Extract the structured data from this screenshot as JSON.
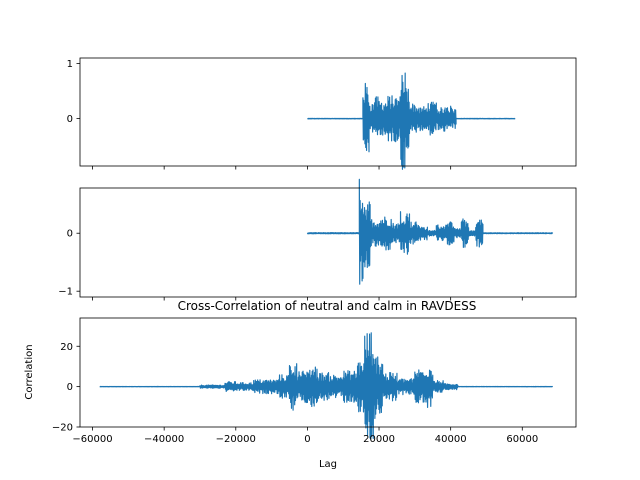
{
  "colors": {
    "line": "#1f77b4",
    "frame": "#000000",
    "background": "#ffffff"
  },
  "chart_data": [
    {
      "type": "line",
      "title": "",
      "xlabel": "",
      "ylabel": "",
      "xlim": [
        -63500,
        75000
      ],
      "ylim": [
        -0.86,
        1.1
      ],
      "yticks": [
        0,
        1
      ],
      "ytick_labels": [
        "0",
        "1"
      ],
      "xticks": [
        -60000,
        -40000,
        -20000,
        0,
        20000,
        40000,
        60000
      ],
      "xtick_labels_shown": false,
      "grid": false,
      "series": [
        {
          "x_range": [
            0,
            58000
          ],
          "segments": [
            {
              "start": 0,
              "end": 15500,
              "amp": 0.005
            },
            {
              "start": 15500,
              "end": 17200,
              "amp": 0.65
            },
            {
              "start": 17200,
              "end": 19000,
              "amp": 0.3
            },
            {
              "start": 19000,
              "end": 19800,
              "amp": 0.4
            },
            {
              "start": 19800,
              "end": 22500,
              "amp": 0.35
            },
            {
              "start": 22500,
              "end": 26000,
              "amp": 0.42
            },
            {
              "start": 26000,
              "end": 27300,
              "amp": 0.95
            },
            {
              "start": 27300,
              "end": 28500,
              "amp": 0.6
            },
            {
              "start": 28500,
              "end": 30500,
              "amp": 0.28
            },
            {
              "start": 30500,
              "end": 33500,
              "amp": 0.22
            },
            {
              "start": 33500,
              "end": 36000,
              "amp": 0.3
            },
            {
              "start": 36000,
              "end": 38000,
              "amp": 0.2
            },
            {
              "start": 38000,
              "end": 40000,
              "amp": 0.25
            },
            {
              "start": 40000,
              "end": 41500,
              "amp": 0.2
            },
            {
              "start": 41500,
              "end": 58000,
              "amp": 0.005
            }
          ]
        }
      ]
    },
    {
      "type": "line",
      "title": "",
      "xlabel": "",
      "ylabel": "",
      "xlim": [
        -63500,
        75000
      ],
      "ylim": [
        -1.1,
        0.78
      ],
      "yticks": [
        -1,
        0
      ],
      "ytick_labels": [
        "−1",
        "0"
      ],
      "xticks": [
        -60000,
        -40000,
        -20000,
        0,
        20000,
        40000,
        60000
      ],
      "xtick_labels_shown": false,
      "grid": false,
      "series": [
        {
          "x_range": [
            0,
            68500
          ],
          "segments": [
            {
              "start": 0,
              "end": 14500,
              "amp": 0.01
            },
            {
              "start": 14500,
              "end": 15500,
              "amp": 0.95
            },
            {
              "start": 15500,
              "end": 17500,
              "amp": 0.6
            },
            {
              "start": 17500,
              "end": 20500,
              "amp": 0.25
            },
            {
              "start": 20500,
              "end": 23500,
              "amp": 0.3
            },
            {
              "start": 23500,
              "end": 26000,
              "amp": 0.18
            },
            {
              "start": 26000,
              "end": 28500,
              "amp": 0.4
            },
            {
              "start": 28500,
              "end": 31000,
              "amp": 0.2
            },
            {
              "start": 31000,
              "end": 33500,
              "amp": 0.12
            },
            {
              "start": 33500,
              "end": 36000,
              "amp": 0.05
            },
            {
              "start": 36000,
              "end": 39000,
              "amp": 0.15
            },
            {
              "start": 39000,
              "end": 41000,
              "amp": 0.2
            },
            {
              "start": 41000,
              "end": 43000,
              "amp": 0.08
            },
            {
              "start": 43000,
              "end": 45000,
              "amp": 0.25
            },
            {
              "start": 45000,
              "end": 47000,
              "amp": 0.05
            },
            {
              "start": 47000,
              "end": 49000,
              "amp": 0.25
            },
            {
              "start": 49000,
              "end": 68500,
              "amp": 0.008
            }
          ]
        }
      ]
    },
    {
      "type": "line",
      "title": "Cross-Correlation of neutral and calm in RAVDESS",
      "xlabel": "Lag",
      "ylabel": "Correlation",
      "xlim": [
        -63500,
        75000
      ],
      "ylim": [
        -20,
        34
      ],
      "yticks": [
        -20,
        0,
        20
      ],
      "ytick_labels": [
        "−20",
        "0",
        "20"
      ],
      "xticks": [
        -60000,
        -40000,
        -20000,
        0,
        20000,
        40000,
        60000
      ],
      "xtick_labels": [
        "−60000",
        "−40000",
        "−20000",
        "0",
        "20000",
        "40000",
        "60000"
      ],
      "xtick_labels_shown": true,
      "grid": false,
      "series": [
        {
          "x_range": [
            -58000,
            68500
          ],
          "segments": [
            {
              "start": -58000,
              "end": -30000,
              "amp": 0.1
            },
            {
              "start": -30000,
              "end": -23000,
              "amp": 0.8
            },
            {
              "start": -23000,
              "end": -20000,
              "amp": 2.5
            },
            {
              "start": -20000,
              "end": -15000,
              "amp": 2.0
            },
            {
              "start": -15000,
              "end": -8000,
              "amp": 3.5
            },
            {
              "start": -8000,
              "end": -5000,
              "amp": 6
            },
            {
              "start": -5000,
              "end": -3000,
              "amp": 12
            },
            {
              "start": -3000,
              "end": 0,
              "amp": 8
            },
            {
              "start": 0,
              "end": 3000,
              "amp": 10
            },
            {
              "start": 3000,
              "end": 6000,
              "amp": 7
            },
            {
              "start": 6000,
              "end": 10000,
              "amp": 6
            },
            {
              "start": 10000,
              "end": 14000,
              "amp": 8
            },
            {
              "start": 14000,
              "end": 16000,
              "amp": 14
            },
            {
              "start": 16000,
              "end": 18500,
              "amp": 28
            },
            {
              "start": 18500,
              "end": 21000,
              "amp": 16
            },
            {
              "start": 21000,
              "end": 25000,
              "amp": 7
            },
            {
              "start": 25000,
              "end": 30000,
              "amp": 4
            },
            {
              "start": 30000,
              "end": 33000,
              "amp": 9
            },
            {
              "start": 33000,
              "end": 35000,
              "amp": 11
            },
            {
              "start": 35000,
              "end": 38000,
              "amp": 3
            },
            {
              "start": 38000,
              "end": 42000,
              "amp": 1.5
            },
            {
              "start": 42000,
              "end": 68500,
              "amp": 0.1
            }
          ]
        }
      ]
    }
  ]
}
